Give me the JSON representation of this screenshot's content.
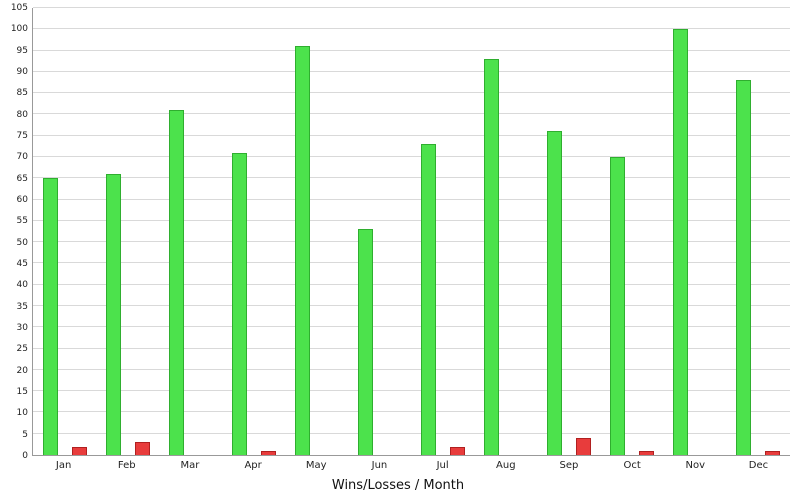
{
  "chart_data": {
    "type": "bar",
    "title": "Wins/Losses / Month",
    "xlabel": "",
    "ylabel": "",
    "ylim": [
      0,
      105
    ],
    "ytick_step": 5,
    "grid": true,
    "legend_position": "none",
    "categories": [
      "Jan",
      "Feb",
      "Mar",
      "Apr",
      "May",
      "Jun",
      "Jul",
      "Aug",
      "Sep",
      "Oct",
      "Nov",
      "Dec"
    ],
    "series": [
      {
        "name": "Wins",
        "color": "#4ce24c",
        "border_color": "#2fae2f",
        "values": [
          65,
          66,
          81,
          71,
          96,
          53,
          73,
          93,
          76,
          70,
          100,
          88
        ]
      },
      {
        "name": "Losses",
        "color": "#e83c3c",
        "border_color": "#b02020",
        "values": [
          2,
          3,
          0,
          1,
          0,
          0,
          2,
          0,
          4,
          1,
          0,
          1
        ]
      }
    ]
  }
}
